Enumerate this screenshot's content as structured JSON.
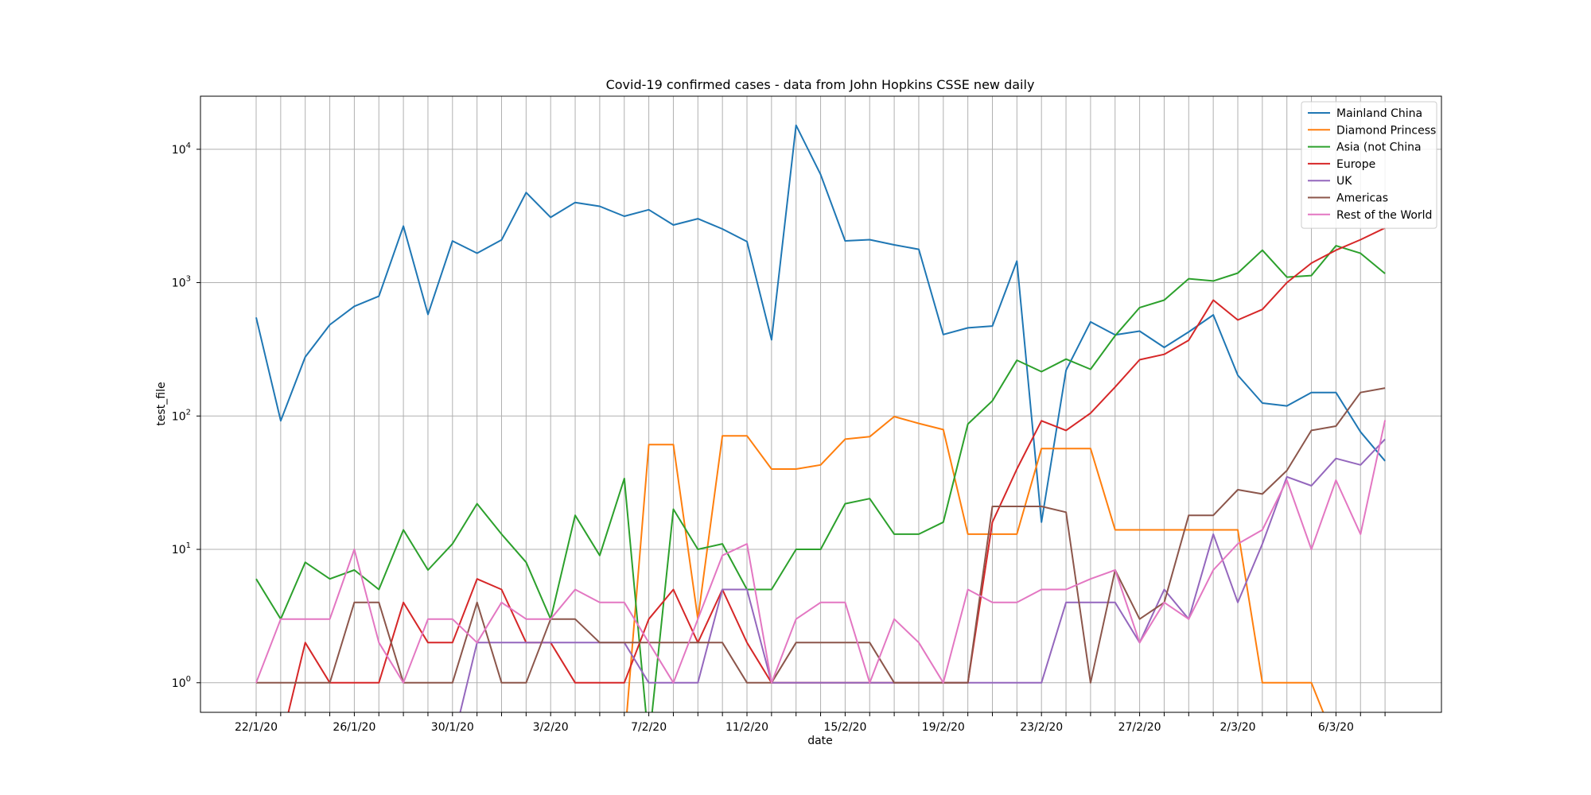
{
  "chart_data": {
    "type": "line",
    "title": "Covid-19 confirmed cases - data from John Hopkins CSSE new daily",
    "xlabel": "date",
    "ylabel": "test_file",
    "yscale": "log",
    "ylim": [
      0.6,
      25000
    ],
    "grid": true,
    "legend_position": "top-right",
    "x": [
      "22/1/20",
      "23/1/20",
      "24/1/20",
      "25/1/20",
      "26/1/20",
      "27/1/20",
      "28/1/20",
      "29/1/20",
      "30/1/20",
      "31/1/20",
      "1/2/20",
      "2/2/20",
      "3/2/20",
      "4/2/20",
      "5/2/20",
      "6/2/20",
      "7/2/20",
      "8/2/20",
      "9/2/20",
      "10/2/20",
      "11/2/20",
      "12/2/20",
      "13/2/20",
      "14/2/20",
      "15/2/20",
      "16/2/20",
      "17/2/20",
      "18/2/20",
      "19/2/20",
      "20/2/20",
      "21/2/20",
      "22/2/20",
      "23/2/20",
      "24/2/20",
      "25/2/20",
      "26/2/20",
      "27/2/20",
      "28/2/20",
      "29/2/20",
      "1/3/20",
      "2/3/20",
      "3/3/20",
      "4/3/20",
      "5/3/20",
      "6/3/20",
      "7/3/20",
      "8/3/20"
    ],
    "x_ticks": [
      "22/1/20",
      "26/1/20",
      "30/1/20",
      "3/2/20",
      "7/2/20",
      "11/2/20",
      "15/2/20",
      "19/2/20",
      "23/2/20",
      "27/2/20",
      "2/3/20",
      "6/3/20"
    ],
    "y_ticks": [
      {
        "value": 1,
        "label": "10",
        "exp": "0"
      },
      {
        "value": 10,
        "label": "10",
        "exp": "1"
      },
      {
        "value": 100,
        "label": "10",
        "exp": "2"
      },
      {
        "value": 1000,
        "label": "10",
        "exp": "3"
      },
      {
        "value": 10000,
        "label": "10",
        "exp": "4"
      }
    ],
    "series": [
      {
        "name": "Mainland China",
        "color": "#1f77b4",
        "values": [
          548,
          92,
          277,
          483,
          664,
          791,
          2654,
          578,
          2054,
          1661,
          2089,
          4739,
          3086,
          3991,
          3733,
          3147,
          3523,
          2704,
          3015,
          2525,
          2032,
          373,
          15136,
          6463,
          2055,
          2100,
          1921,
          1777,
          408,
          458,
          473,
          1451,
          16,
          220,
          508,
          406,
          433,
          327,
          427,
          573,
          202,
          125,
          119,
          150,
          150,
          76,
          46
        ]
      },
      {
        "name": "Diamond Princess",
        "color": "#ff7f0e",
        "values": [
          null,
          null,
          null,
          null,
          null,
          null,
          null,
          null,
          null,
          null,
          null,
          null,
          null,
          null,
          null,
          null,
          61,
          61,
          3,
          71,
          71,
          40,
          40,
          43,
          67,
          70,
          99,
          88,
          79,
          13,
          13,
          13,
          57,
          57,
          57,
          14,
          14,
          14,
          14,
          14,
          14,
          1,
          1,
          1,
          null,
          null,
          null
        ]
      },
      {
        "name": "Asia (not China",
        "color": "#2ca02c",
        "values": [
          6,
          3,
          8,
          6,
          7,
          5,
          14,
          7,
          11,
          22,
          13,
          8,
          3,
          18,
          9,
          34,
          null,
          20,
          10,
          11,
          5,
          5,
          10,
          10,
          22,
          24,
          13,
          13,
          16,
          87,
          130,
          262,
          215,
          267,
          224,
          400,
          650,
          740,
          1070,
          1030,
          1180,
          1750,
          1100,
          1130,
          1890,
          1660,
          1170
        ]
      },
      {
        "name": "Europe",
        "color": "#d62728",
        "values": [
          null,
          null,
          2,
          1,
          1,
          1,
          4,
          2,
          2,
          6,
          5,
          2,
          2,
          1,
          1,
          1,
          3,
          5,
          2,
          5,
          2,
          1,
          1,
          1,
          1,
          1,
          1,
          1,
          1,
          1,
          16,
          40,
          92,
          78,
          105,
          165,
          264,
          290,
          370,
          740,
          525,
          630,
          1000,
          1400,
          1750,
          2100,
          2570
        ]
      },
      {
        "name": "UK",
        "color": "#9467bd",
        "values": [
          null,
          null,
          null,
          null,
          null,
          null,
          null,
          null,
          null,
          2,
          2,
          2,
          2,
          2,
          2,
          2,
          1,
          1,
          1,
          5,
          5,
          1,
          1,
          1,
          1,
          1,
          1,
          1,
          1,
          1,
          1,
          1,
          1,
          4,
          4,
          4,
          2,
          5,
          3,
          13,
          4,
          11,
          35,
          30,
          48,
          43,
          67
        ]
      },
      {
        "name": "Americas",
        "color": "#8c564b",
        "values": [
          1,
          1,
          1,
          1,
          4,
          4,
          1,
          1,
          1,
          4,
          1,
          1,
          3,
          3,
          2,
          2,
          2,
          2,
          2,
          2,
          1,
          1,
          2,
          2,
          2,
          2,
          1,
          1,
          1,
          1,
          21,
          21,
          21,
          19,
          1,
          7,
          3,
          4,
          18,
          18,
          28,
          26,
          39,
          78,
          84,
          150,
          162
        ]
      },
      {
        "name": "Rest of the World",
        "color": "#e377c2",
        "values": [
          1,
          3,
          3,
          3,
          10,
          2,
          1,
          3,
          3,
          2,
          4,
          3,
          3,
          5,
          4,
          4,
          2,
          1,
          3,
          9,
          11,
          1,
          3,
          4,
          4,
          1,
          3,
          2,
          1,
          5,
          4,
          4,
          5,
          5,
          6,
          7,
          2,
          4,
          3,
          7,
          11,
          14,
          33,
          10,
          33,
          13,
          93
        ]
      }
    ]
  }
}
